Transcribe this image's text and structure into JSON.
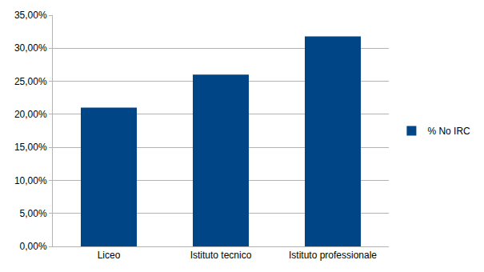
{
  "chart_data": {
    "type": "bar",
    "categories": [
      "Liceo",
      "Istituto tecnico",
      "Istituto professionale"
    ],
    "series": [
      {
        "name": "% No IRC",
        "color": "#004586",
        "values": [
          21.0,
          26.0,
          31.8
        ]
      }
    ],
    "ylim": [
      0,
      35
    ],
    "yticks": [
      {
        "value": 0,
        "label": "0,00%"
      },
      {
        "value": 5,
        "label": "5,00%"
      },
      {
        "value": 10,
        "label": "10,00%"
      },
      {
        "value": 15,
        "label": "15,00%"
      },
      {
        "value": 20,
        "label": "20,00%"
      },
      {
        "value": 25,
        "label": "25,00%"
      },
      {
        "value": 30,
        "label": "30,00%"
      },
      {
        "value": 35,
        "label": "35,00%"
      }
    ],
    "grid": true,
    "legend": "right"
  }
}
